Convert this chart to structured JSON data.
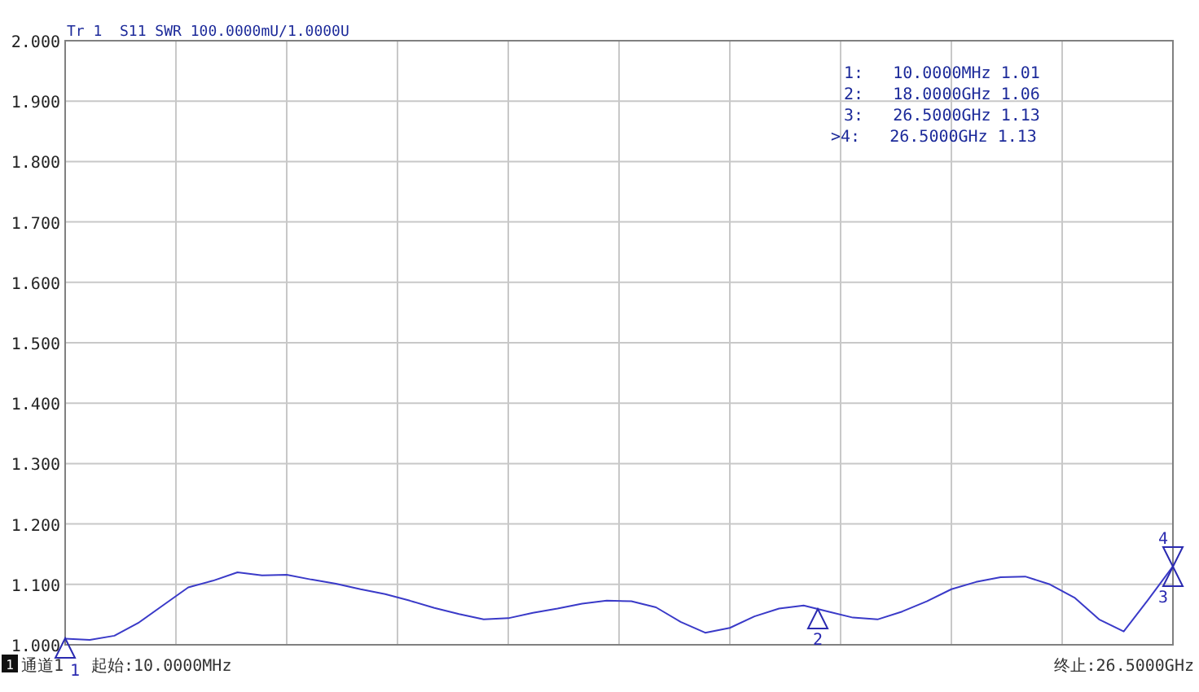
{
  "chart_data": {
    "type": "line",
    "title": "Tr 1  S11 SWR 100.0000mU/1.0000U",
    "categories": [
      null,
      null,
      null,
      null,
      null,
      null,
      null,
      null,
      null,
      null,
      null,
      null,
      null,
      null,
      null,
      null,
      null,
      null,
      null,
      null,
      null,
      null,
      null,
      null,
      null,
      null,
      null,
      null,
      null,
      null,
      null,
      null,
      null,
      null,
      null,
      null,
      null,
      null,
      null,
      null,
      null,
      null,
      null,
      null,
      null,
      null
    ],
    "series": [
      {
        "color": "#3a3ac8",
        "values": [
          1.01,
          1.008,
          1.015,
          1.037,
          1.066,
          1.095,
          1.106,
          1.12,
          1.115,
          1.116,
          1.108,
          1.101,
          1.092,
          1.084,
          1.073,
          1.061,
          1.051,
          1.042,
          1.044,
          1.053,
          1.06,
          1.068,
          1.073,
          1.072,
          1.062,
          1.038,
          1.02,
          1.028,
          1.047,
          1.06,
          1.065,
          1.055,
          1.045,
          1.042,
          1.055,
          1.072,
          1.092,
          1.104,
          1.112,
          1.113,
          1.1,
          1.078,
          1.042,
          1.022,
          1.075,
          1.13
        ]
      }
    ],
    "ylim": [
      1.0,
      2.0
    ],
    "yticks": [
      {
        "value": 1.0,
        "label": "1.000"
      },
      {
        "value": 1.1,
        "label": "1.100"
      },
      {
        "value": 1.2,
        "label": "1.200"
      },
      {
        "value": 1.3,
        "label": "1.300"
      },
      {
        "value": 1.4,
        "label": "1.400"
      },
      {
        "value": 1.5,
        "label": "1.500"
      },
      {
        "value": 1.6,
        "label": "1.600"
      },
      {
        "value": 1.7,
        "label": "1.700"
      },
      {
        "value": 1.8,
        "label": "1.800"
      },
      {
        "value": 1.9,
        "label": "1.900"
      },
      {
        "value": 2.0,
        "label": "2.000"
      }
    ],
    "grid": true,
    "annotations": [
      "1:   10.0000MHz 1.01",
      "2:   18.0000GHz 1.06",
      "3:   26.5000GHz 1.13",
      ">4:   26.5000GHz 1.13",
      "1",
      "通道1",
      "起始:10.0000MHz",
      "终止:26.5000GHz",
      "1",
      "2",
      "3",
      "4"
    ]
  }
}
